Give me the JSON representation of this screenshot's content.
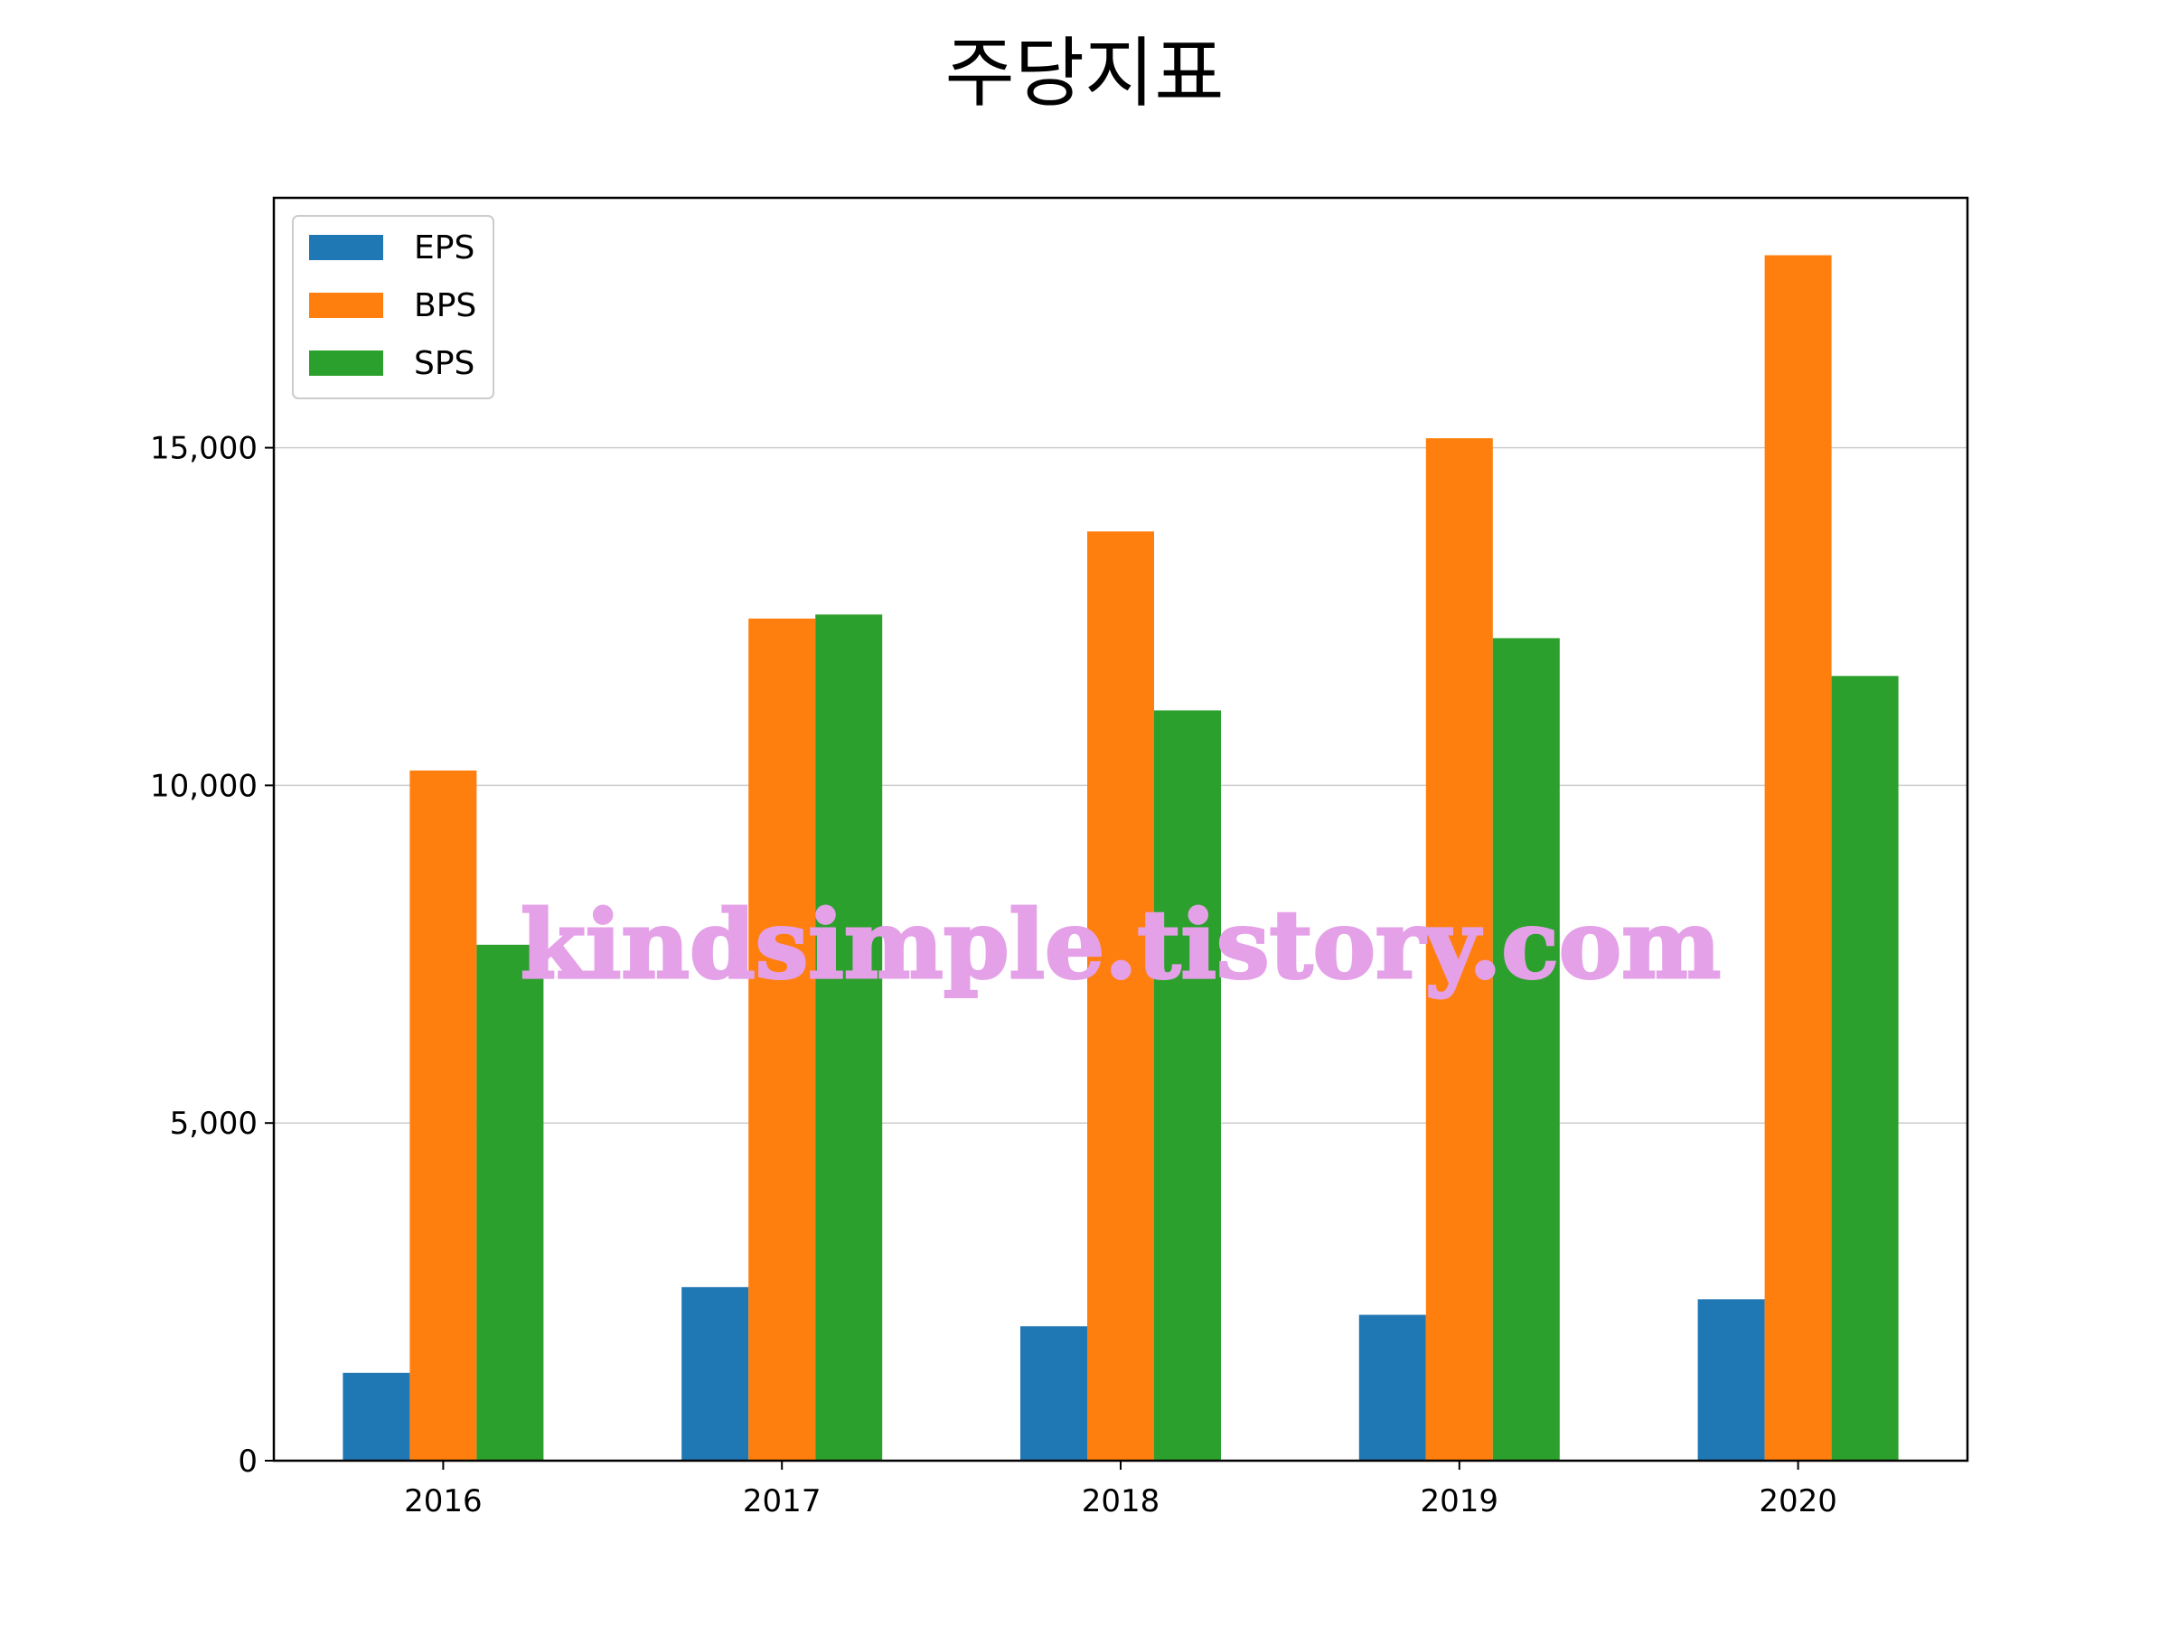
{
  "watermark": "kindsimple.tistory.com",
  "chart_data": {
    "type": "bar",
    "title": "주당지표",
    "xlabel": "",
    "ylabel": "",
    "categories": [
      "2016",
      "2017",
      "2018",
      "2019",
      "2020"
    ],
    "series": [
      {
        "name": "EPS",
        "color": "#1f77b4",
        "values": [
          1300,
          2570,
          1990,
          2160,
          2390
        ]
      },
      {
        "name": "BPS",
        "color": "#ff7f0e",
        "values": [
          10220,
          12470,
          13760,
          15140,
          17850
        ]
      },
      {
        "name": "SPS",
        "color": "#2ca02c",
        "values": [
          7640,
          12530,
          11110,
          12180,
          11620
        ]
      }
    ],
    "ylim": [
      0,
      18700
    ],
    "yticks": [
      0,
      5000,
      10000,
      15000
    ],
    "ytick_labels": [
      "0",
      "5,000",
      "10,000",
      "15,000"
    ],
    "grid": "horizontal",
    "legend": "top-left"
  }
}
